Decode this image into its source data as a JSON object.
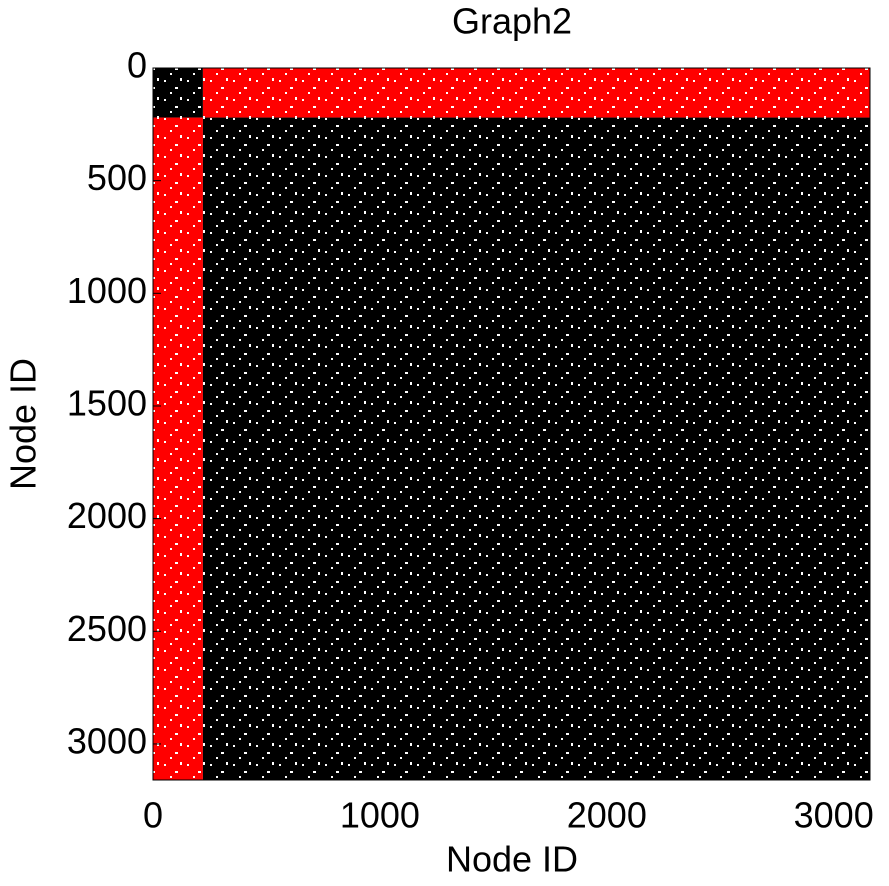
{
  "chart_data": {
    "type": "matrix",
    "title": "Graph2",
    "xlabel": "Node ID",
    "ylabel": "Node ID",
    "xlim": [
      0,
      3160
    ],
    "ylim": [
      3160,
      0
    ],
    "xticks": [
      0,
      1000,
      2000,
      3000
    ],
    "yticks": [
      0,
      500,
      1000,
      1500,
      2000,
      2500,
      3000
    ],
    "blocks": [
      {
        "color": "#000000",
        "x": [
          0,
          220
        ],
        "y": [
          0,
          220
        ]
      },
      {
        "color": "#ff0000",
        "x": [
          220,
          3160
        ],
        "y": [
          0,
          220
        ]
      },
      {
        "color": "#ff0000",
        "x": [
          0,
          220
        ],
        "y": [
          220,
          3160
        ]
      },
      {
        "color": "#000000",
        "x": [
          220,
          3160
        ],
        "y": [
          220,
          3160
        ]
      }
    ]
  }
}
